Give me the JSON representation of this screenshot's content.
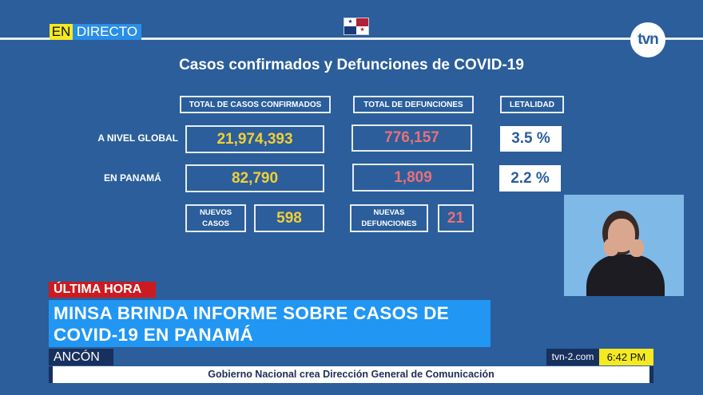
{
  "live_badge": {
    "en": "EN",
    "directo": "DIRECTO"
  },
  "logo": "tvn",
  "title": "Casos confirmados y Defunciones de COVID-19",
  "headers": {
    "confirmed": "TOTAL DE CASOS CONFIRMADOS",
    "deaths": "TOTAL DE DEFUNCIONES",
    "lethality": "LETALIDAD"
  },
  "rows": [
    {
      "label": "A NIVEL GLOBAL",
      "confirmed": "21,974,393",
      "deaths": "776,157",
      "lethality": "3.5 %"
    },
    {
      "label": "EN PANAMÁ",
      "confirmed": "82,790",
      "deaths": "1,809",
      "lethality": "2.2 %"
    }
  ],
  "new": {
    "cases_label": "NUEVOS CASOS",
    "cases": "598",
    "deaths_label": "NUEVAS DEFUNCIONES",
    "deaths": "21"
  },
  "lower_third": {
    "tag": "ÚLTIMA HORA",
    "headline": "MINSA BRINDA INFORME SOBRE CASOS DE COVID-19 EN PANAMÁ",
    "location": "ANCÓN",
    "site": "tvn-2.com",
    "time": "6:42 PM",
    "ticker": "Gobierno Nacional crea Dirección General de Comunicación"
  },
  "colors": {
    "background": "#2b5e9b",
    "confirmed": "#f0cf3a",
    "deaths": "#e8707a",
    "headline": "#2196f3",
    "tag": "#cc1b20",
    "live": "#f5ea22"
  }
}
